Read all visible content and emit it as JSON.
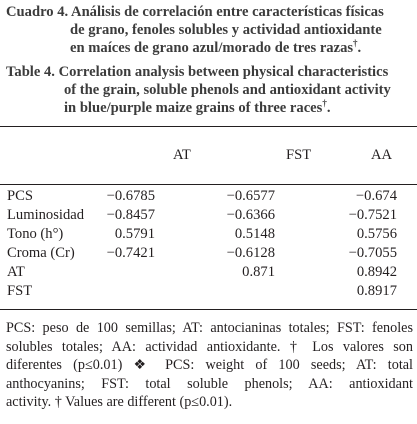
{
  "caption_es": {
    "label": "Cuadro 4.",
    "line1": "Análisis de correlación entre características físicas",
    "line2": "de grano, fenoles solubles y actividad antioxidante",
    "line3": "en maíces de grano azul/morado de tres razas",
    "mark": "†",
    "end": "."
  },
  "caption_en": {
    "label": "Table 4.",
    "line1": "Correlation analysis between physical characteristics",
    "line2": "of the grain, soluble phenols and antioxidant activity",
    "line3": "in blue/purple maize grains of three races",
    "mark": "†",
    "end": "."
  },
  "table": {
    "headers": [
      "",
      "AT",
      "FST",
      "AA"
    ],
    "rows": [
      {
        "label": "PCS",
        "values": [
          "−0.6785",
          "−0.6577",
          "−0.674"
        ]
      },
      {
        "label": "Luminosidad",
        "values": [
          "−0.8457",
          "−0.6366",
          "−0.7521"
        ]
      },
      {
        "label": "Tono (h°)",
        "values": [
          "0.5791",
          "0.5148",
          "0.5756"
        ]
      },
      {
        "label": "Croma (Cr)",
        "values": [
          "−0.7421",
          "−0.6128",
          "−0.7055"
        ]
      },
      {
        "label": "AT",
        "values": [
          "",
          "0.871",
          "0.8942"
        ]
      },
      {
        "label": "FST",
        "values": [
          "",
          "",
          "0.8917"
        ]
      }
    ]
  },
  "footnote": {
    "line1": "PCS: peso de 100 semillas; AT: antocianinas totales; FST: fenoles",
    "line2": "solubles totales; AA: actividad antioxidante. † Los valores son",
    "line3": "diferentes (p≤0.01) ❖ PCS: weight of 100 seeds; AT: total",
    "line4": "anthocyanins; FST: total soluble phenols; AA: antioxidant",
    "line5": "activity. † Values are different (p≤0.01)."
  }
}
